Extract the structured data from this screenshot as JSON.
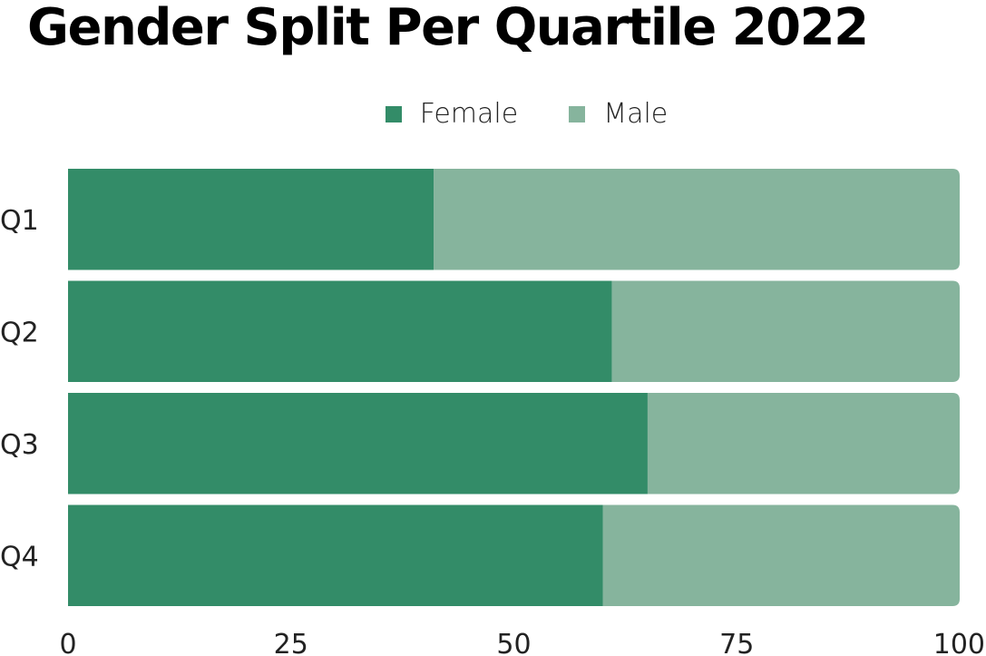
{
  "chart_data": {
    "type": "bar",
    "orientation": "horizontal",
    "stacked": true,
    "title": "Gender Split Per Quartile 2022",
    "categories": [
      "Q1",
      "Q2",
      "Q3",
      "Q4"
    ],
    "series": [
      {
        "name": "Female",
        "values": [
          41,
          61,
          65,
          60
        ],
        "color": "#338c68"
      },
      {
        "name": "Male",
        "values": [
          59,
          39,
          35,
          40
        ],
        "color": "#86b49d"
      }
    ],
    "xlim": [
      0,
      100
    ],
    "xticks": [
      0,
      25,
      50,
      75,
      100
    ],
    "legend_position": "top-center",
    "grid": false
  }
}
